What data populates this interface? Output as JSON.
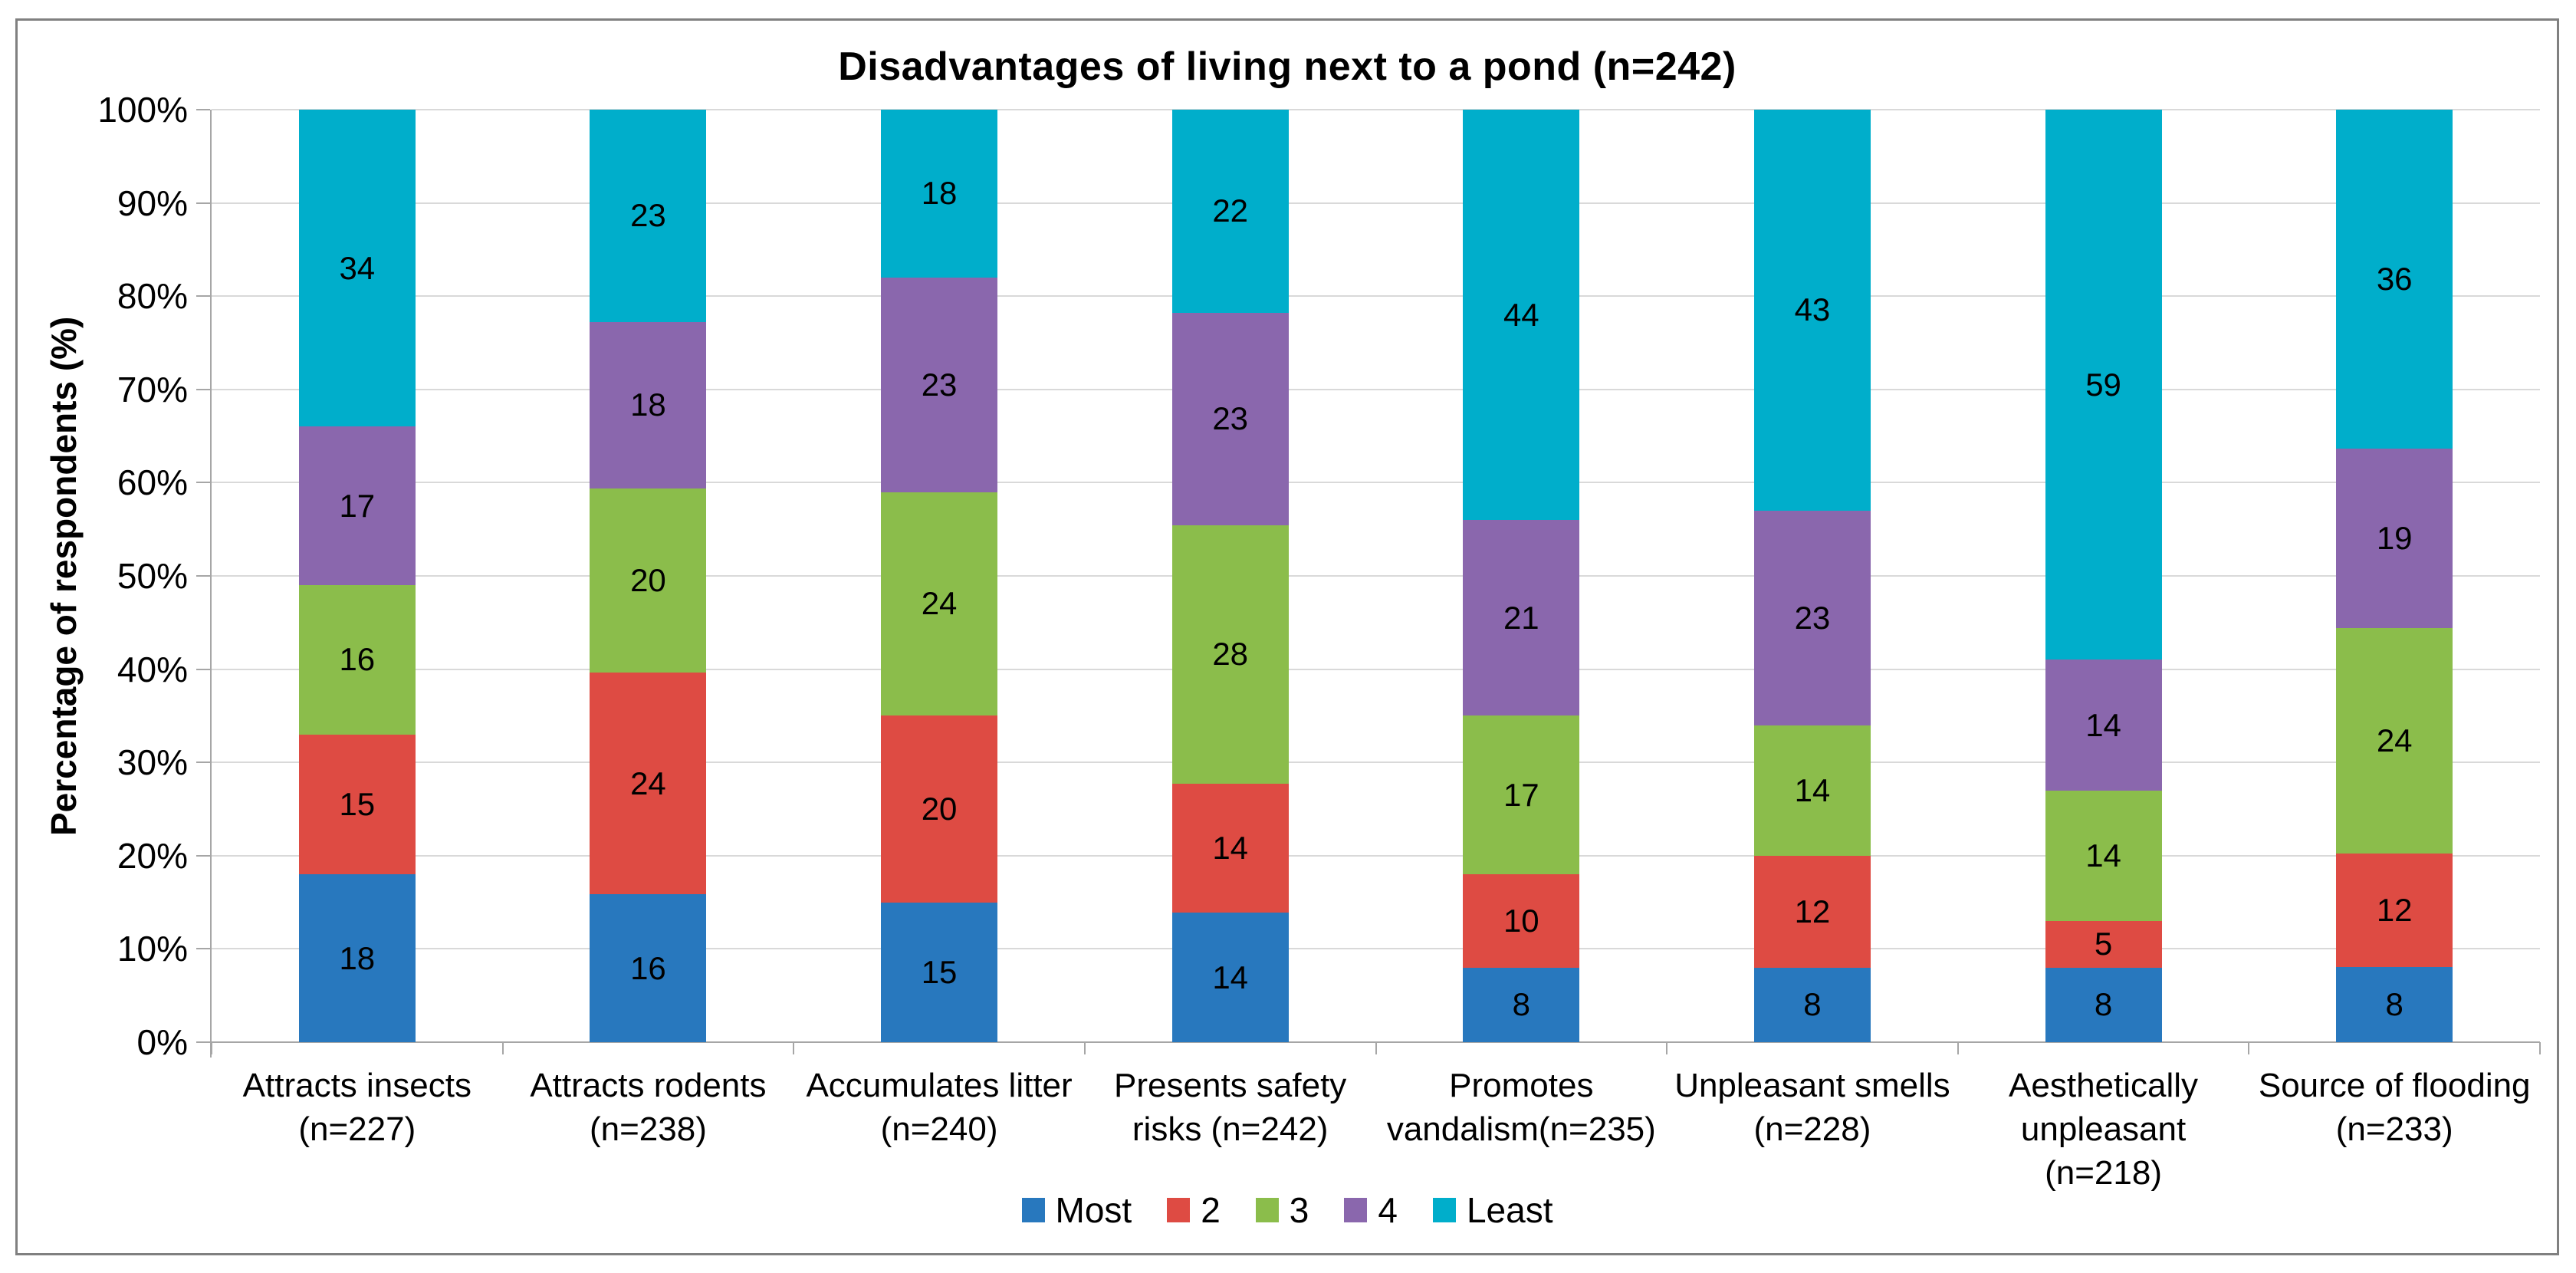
{
  "style": {
    "border_color": "#808080",
    "axis_color": "#A6A6A6",
    "gridline_color": "#D9D9D9",
    "background": "#FFFFFF",
    "text_color": "#000000"
  },
  "chart_data": {
    "type": "bar",
    "subtype": "100%-stacked-column",
    "title": "Disadvantages of living next to a pond (n=242)",
    "xlabel": "",
    "ylabel": "Percentage of respondents (%)",
    "ylim": [
      0,
      100
    ],
    "ytick_step": 10,
    "ytick_labels": [
      "0%",
      "10%",
      "20%",
      "30%",
      "40%",
      "50%",
      "60%",
      "70%",
      "80%",
      "90%",
      "100%"
    ],
    "grid": "horizontal",
    "legend_position": "bottom",
    "categories": [
      "Attracts insects (n=227)",
      "Attracts rodents (n=238)",
      "Accumulates litter (n=240)",
      "Presents safety risks (n=242)",
      "Promotes vandalism(n=235)",
      "Unpleasant smells (n=228)",
      "Aesthetically unpleasant (n=218)",
      "Source of flooding (n=233)"
    ],
    "series": [
      {
        "name": "Most",
        "color": "#2878BE",
        "values": [
          18,
          16,
          15,
          14,
          8,
          8,
          8,
          8
        ]
      },
      {
        "name": "2",
        "color": "#DE4B43",
        "values": [
          15,
          24,
          20,
          14,
          10,
          12,
          5,
          12
        ]
      },
      {
        "name": "3",
        "color": "#8BBD4B",
        "values": [
          16,
          20,
          24,
          28,
          17,
          14,
          14,
          24
        ]
      },
      {
        "name": "4",
        "color": "#8A67AD",
        "values": [
          17,
          18,
          23,
          23,
          21,
          23,
          14,
          19
        ]
      },
      {
        "name": "Least",
        "color": "#00AECB",
        "values": [
          34,
          23,
          18,
          22,
          44,
          43,
          59,
          36
        ]
      }
    ]
  }
}
